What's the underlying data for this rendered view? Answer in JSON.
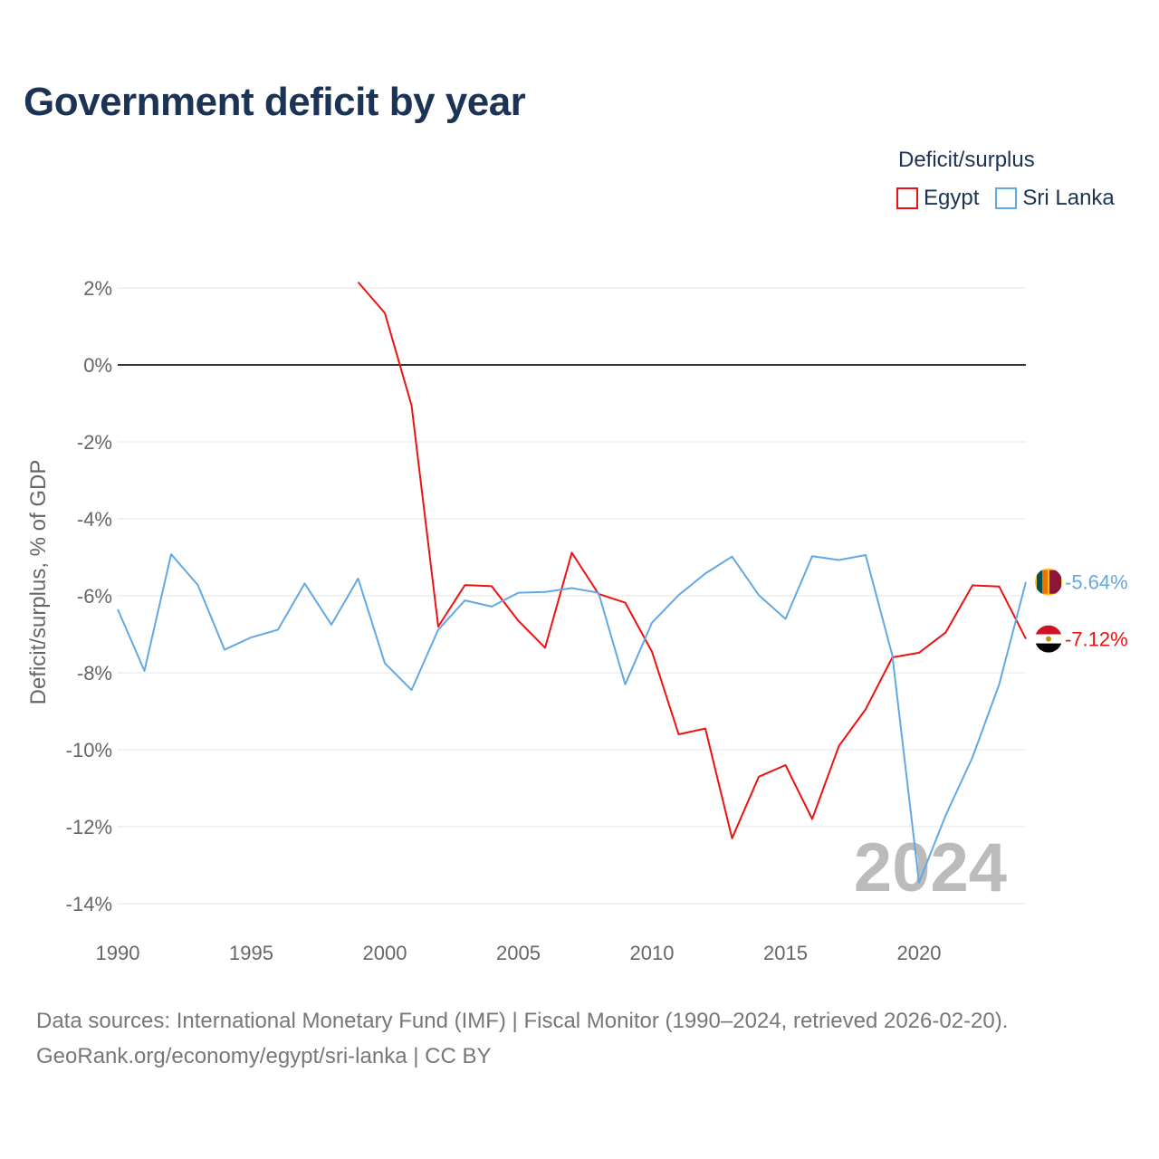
{
  "title": "Government deficit by year",
  "legend": {
    "title": "Deficit/surplus",
    "items": [
      {
        "label": "Egypt",
        "color": "#ee1111"
      },
      {
        "label": "Sri Lanka",
        "color": "#62a8e5"
      }
    ]
  },
  "footer": {
    "line1": "Data sources: International Monetary Fund (IMF) | Fiscal Monitor (1990–2024, retrieved 2026-02-20).",
    "line2": "GeoRank.org/economy/egypt/sri-lanka | CC BY"
  },
  "chart_data": {
    "type": "line",
    "title": "Government deficit by year",
    "ylabel": "Deficit/surplus, % of GDP",
    "xlabel": "",
    "xlim": [
      1990,
      2024
    ],
    "ylim": [
      -14,
      2
    ],
    "yticks": [
      2,
      0,
      -2,
      -4,
      -6,
      -8,
      -10,
      -12,
      -14
    ],
    "ytick_labels": [
      "2%",
      "0%",
      "-2%",
      "-4%",
      "-6%",
      "-8%",
      "-10%",
      "-12%",
      "-14%"
    ],
    "xticks": [
      1990,
      1995,
      2000,
      2005,
      2010,
      2015,
      2020
    ],
    "xtick_labels": [
      "1990",
      "1995",
      "2000",
      "2005",
      "2010",
      "2015",
      "2020"
    ],
    "year_watermark": "2024",
    "series": [
      {
        "name": "Egypt",
        "color": "#ee1111",
        "end_label": "-7.12%",
        "flag": "egypt-flag",
        "x": [
          1999,
          2000,
          2001,
          2002,
          2003,
          2004,
          2005,
          2006,
          2007,
          2008,
          2009,
          2010,
          2011,
          2012,
          2013,
          2014,
          2015,
          2016,
          2017,
          2018,
          2019,
          2020,
          2021,
          2022,
          2023,
          2024
        ],
        "values": [
          2.15,
          1.35,
          -1.05,
          -6.8,
          -5.72,
          -5.75,
          -6.65,
          -7.35,
          -4.88,
          -5.95,
          -6.18,
          -7.45,
          -9.6,
          -9.45,
          -12.3,
          -10.7,
          -10.4,
          -11.8,
          -9.9,
          -8.95,
          -7.6,
          -7.48,
          -6.95,
          -5.73,
          -5.76,
          -7.12
        ]
      },
      {
        "name": "Sri Lanka",
        "color": "#62a8e5",
        "end_label": "-5.64%",
        "flag": "sri-lanka-flag",
        "x": [
          1990,
          1991,
          1992,
          1993,
          1994,
          1995,
          1996,
          1997,
          1998,
          1999,
          2000,
          2001,
          2002,
          2003,
          2004,
          2005,
          2006,
          2007,
          2008,
          2009,
          2010,
          2011,
          2012,
          2013,
          2014,
          2015,
          2016,
          2017,
          2018,
          2019,
          2020,
          2021,
          2022,
          2023,
          2024
        ],
        "values": [
          -6.35,
          -7.95,
          -4.92,
          -5.72,
          -7.4,
          -7.08,
          -6.88,
          -5.68,
          -6.75,
          -5.55,
          -7.75,
          -8.45,
          -6.88,
          -6.12,
          -6.28,
          -5.92,
          -5.9,
          -5.8,
          -5.92,
          -8.3,
          -6.7,
          -5.98,
          -5.42,
          -4.98,
          -5.98,
          -6.6,
          -4.97,
          -5.07,
          -4.94,
          -7.55,
          -13.45,
          -11.7,
          -10.2,
          -8.3,
          -5.64
        ]
      }
    ]
  }
}
